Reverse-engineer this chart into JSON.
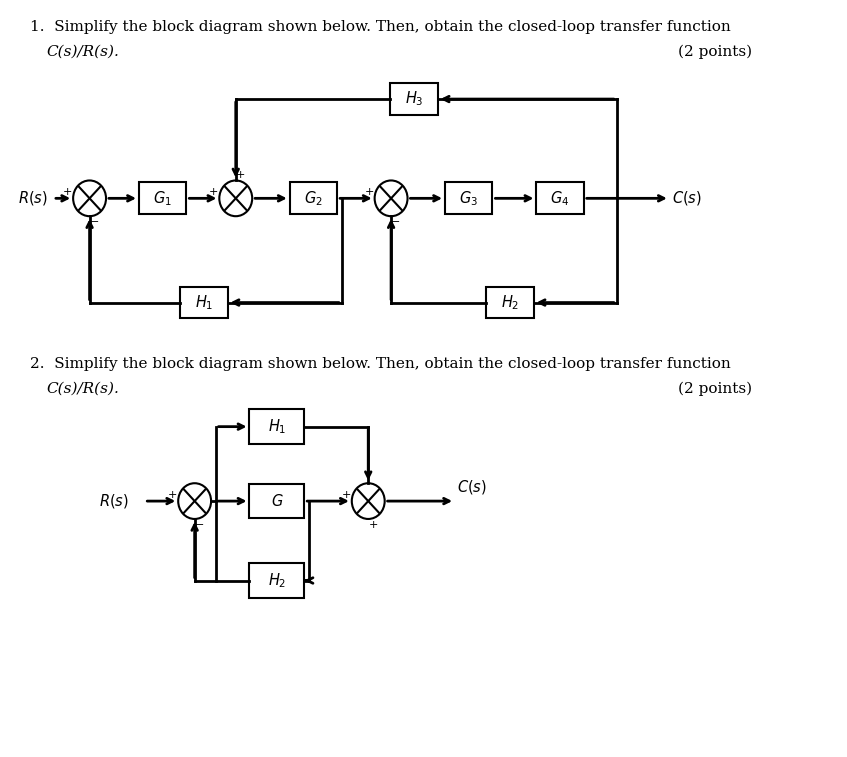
{
  "bg_color": "#ffffff",
  "title1_line1": "1.  Simplify the block diagram shown below. Then, obtain the closed-loop transfer function",
  "title1_line2": "C(s)/R(s).",
  "title1_points": "(2 points)",
  "title2_line1": "2.  Simplify the block diagram shown below. Then, obtain the closed-loop transfer function",
  "title2_line2": "C(s)/R(s).",
  "title2_points": "(2 points)"
}
